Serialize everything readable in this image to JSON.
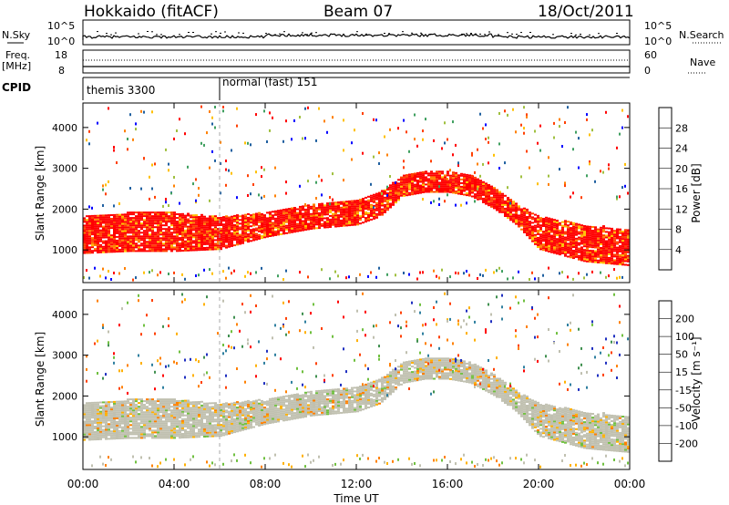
{
  "header": {
    "station": "Hokkaido (fitACF)",
    "beam": "Beam 07",
    "date": "18/Oct/2011"
  },
  "nsky_panel": {
    "left_label": "N.Sky",
    "right_label": "N.Search",
    "ticks_left": [
      "10^5",
      "10^0"
    ],
    "ticks_right": [
      "10^5",
      "10^0"
    ]
  },
  "freq_panel": {
    "left_label_line1": "Freq.",
    "left_label_line2": "[MHz]",
    "right_label": "Nave",
    "ticks_left": [
      "18",
      "8"
    ],
    "ticks_right": [
      "60",
      "0"
    ]
  },
  "cpid_panel": {
    "label": "CPID",
    "modes": [
      {
        "text": "themis 3300",
        "start_hour": 0,
        "end_hour": 6
      },
      {
        "text": "normal (fast) 151",
        "start_hour": 6,
        "end_hour": 24
      }
    ]
  },
  "power_colorbar": {
    "label": "Power [dB]",
    "ticks": [
      "28",
      "24",
      "20",
      "16",
      "12",
      "8",
      "4"
    ],
    "colors": [
      "#ff0000",
      "#ff4000",
      "#ff8000",
      "#ffc000",
      "#a0c040",
      "#40a060",
      "#2060a0",
      "#0000ff"
    ]
  },
  "velocity_colorbar": {
    "label": "Velocity [m s⁻¹]",
    "ticks": [
      "200",
      "100",
      "50",
      "15",
      "-15",
      "-50",
      "-100",
      "-200"
    ],
    "colors": [
      "#2030c0",
      "#3080a0",
      "#409050",
      "#70c040",
      "#c0c0b0",
      "#ffb000",
      "#ff8000",
      "#ff4000",
      "#ff0000"
    ]
  },
  "ylabel": "Slant Range [km]",
  "xlabel": "Time UT",
  "chart_data": [
    {
      "type": "heatmap",
      "title": "Power",
      "xlabel": "Time UT",
      "ylabel": "Slant Range [km]",
      "x_ticks": [
        "00:00",
        "04:00",
        "08:00",
        "12:00",
        "16:00",
        "20:00",
        "00:00"
      ],
      "y_ticks": [
        "4000",
        "3000",
        "2000",
        "1000"
      ],
      "xlim_hours": [
        0,
        24
      ],
      "ylim_km": [
        200,
        4600
      ],
      "main_echo_band": {
        "hours": [
          0,
          2,
          4,
          6,
          8,
          10,
          12,
          13,
          14,
          15,
          16,
          17,
          18,
          19,
          20,
          22,
          24
        ],
        "lower_km": [
          900,
          950,
          950,
          1000,
          1300,
          1500,
          1600,
          1800,
          2300,
          2400,
          2400,
          2300,
          2000,
          1600,
          1000,
          700,
          600
        ],
        "upper_km": [
          1800,
          1900,
          1900,
          1800,
          1900,
          2100,
          2200,
          2400,
          2800,
          2900,
          2900,
          2800,
          2500,
          2100,
          1800,
          1600,
          1500
        ],
        "typical_power_db": 30
      }
    },
    {
      "type": "heatmap",
      "title": "Velocity",
      "xlabel": "Time UT",
      "ylabel": "Slant Range [km]",
      "x_ticks": [
        "00:00",
        "04:00",
        "08:00",
        "12:00",
        "16:00",
        "20:00",
        "00:00"
      ],
      "y_ticks": [
        "4000",
        "3000",
        "2000",
        "1000"
      ],
      "xlim_hours": [
        0,
        24
      ],
      "ylim_km": [
        200,
        4600
      ],
      "main_echo_band": {
        "hours": [
          0,
          2,
          4,
          6,
          8,
          10,
          12,
          13,
          14,
          15,
          16,
          17,
          18,
          19,
          20,
          22,
          24
        ],
        "lower_km": [
          900,
          950,
          950,
          1000,
          1300,
          1500,
          1600,
          1800,
          2300,
          2400,
          2400,
          2300,
          2000,
          1600,
          1000,
          700,
          600
        ],
        "upper_km": [
          1800,
          1900,
          1900,
          1800,
          1900,
          2100,
          2200,
          2400,
          2800,
          2900,
          2900,
          2800,
          2500,
          2100,
          1800,
          1600,
          1500
        ],
        "typical_velocity_ms": 0
      }
    }
  ]
}
